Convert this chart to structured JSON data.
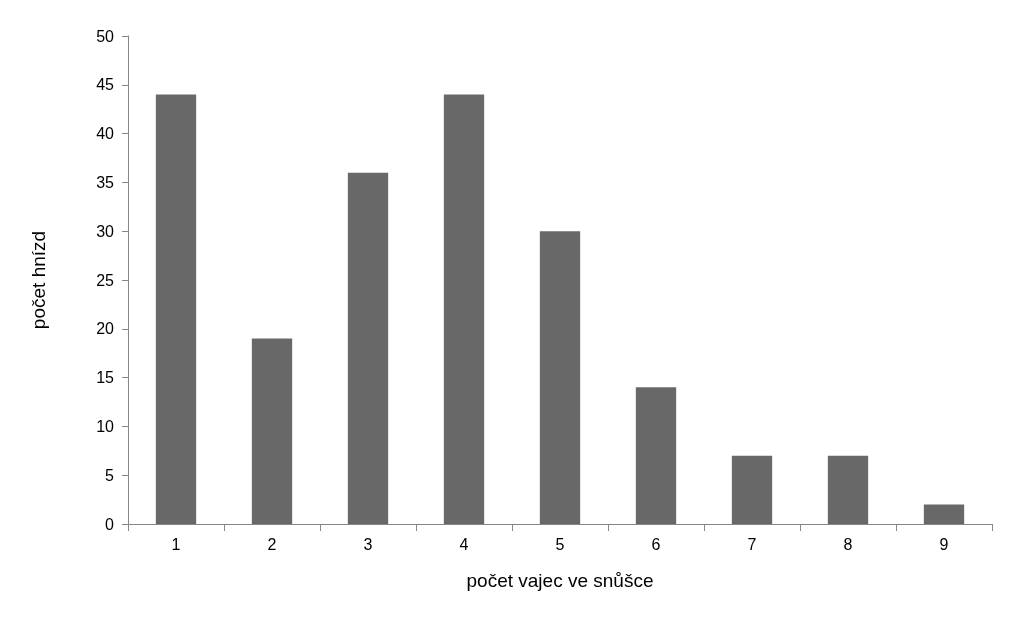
{
  "chart_data": {
    "type": "bar",
    "xlabel": "počet vajec ve snůšce",
    "ylabel": "počet hnízd",
    "categories": [
      "1",
      "2",
      "3",
      "4",
      "5",
      "6",
      "7",
      "8",
      "9"
    ],
    "values": [
      44,
      19,
      36,
      44,
      30,
      14,
      7,
      7,
      2
    ],
    "color": "#686868",
    "ylim": [
      0,
      50
    ],
    "yticks": [
      0,
      5,
      10,
      15,
      20,
      25,
      30,
      35,
      40,
      45,
      50
    ],
    "grid": false
  }
}
